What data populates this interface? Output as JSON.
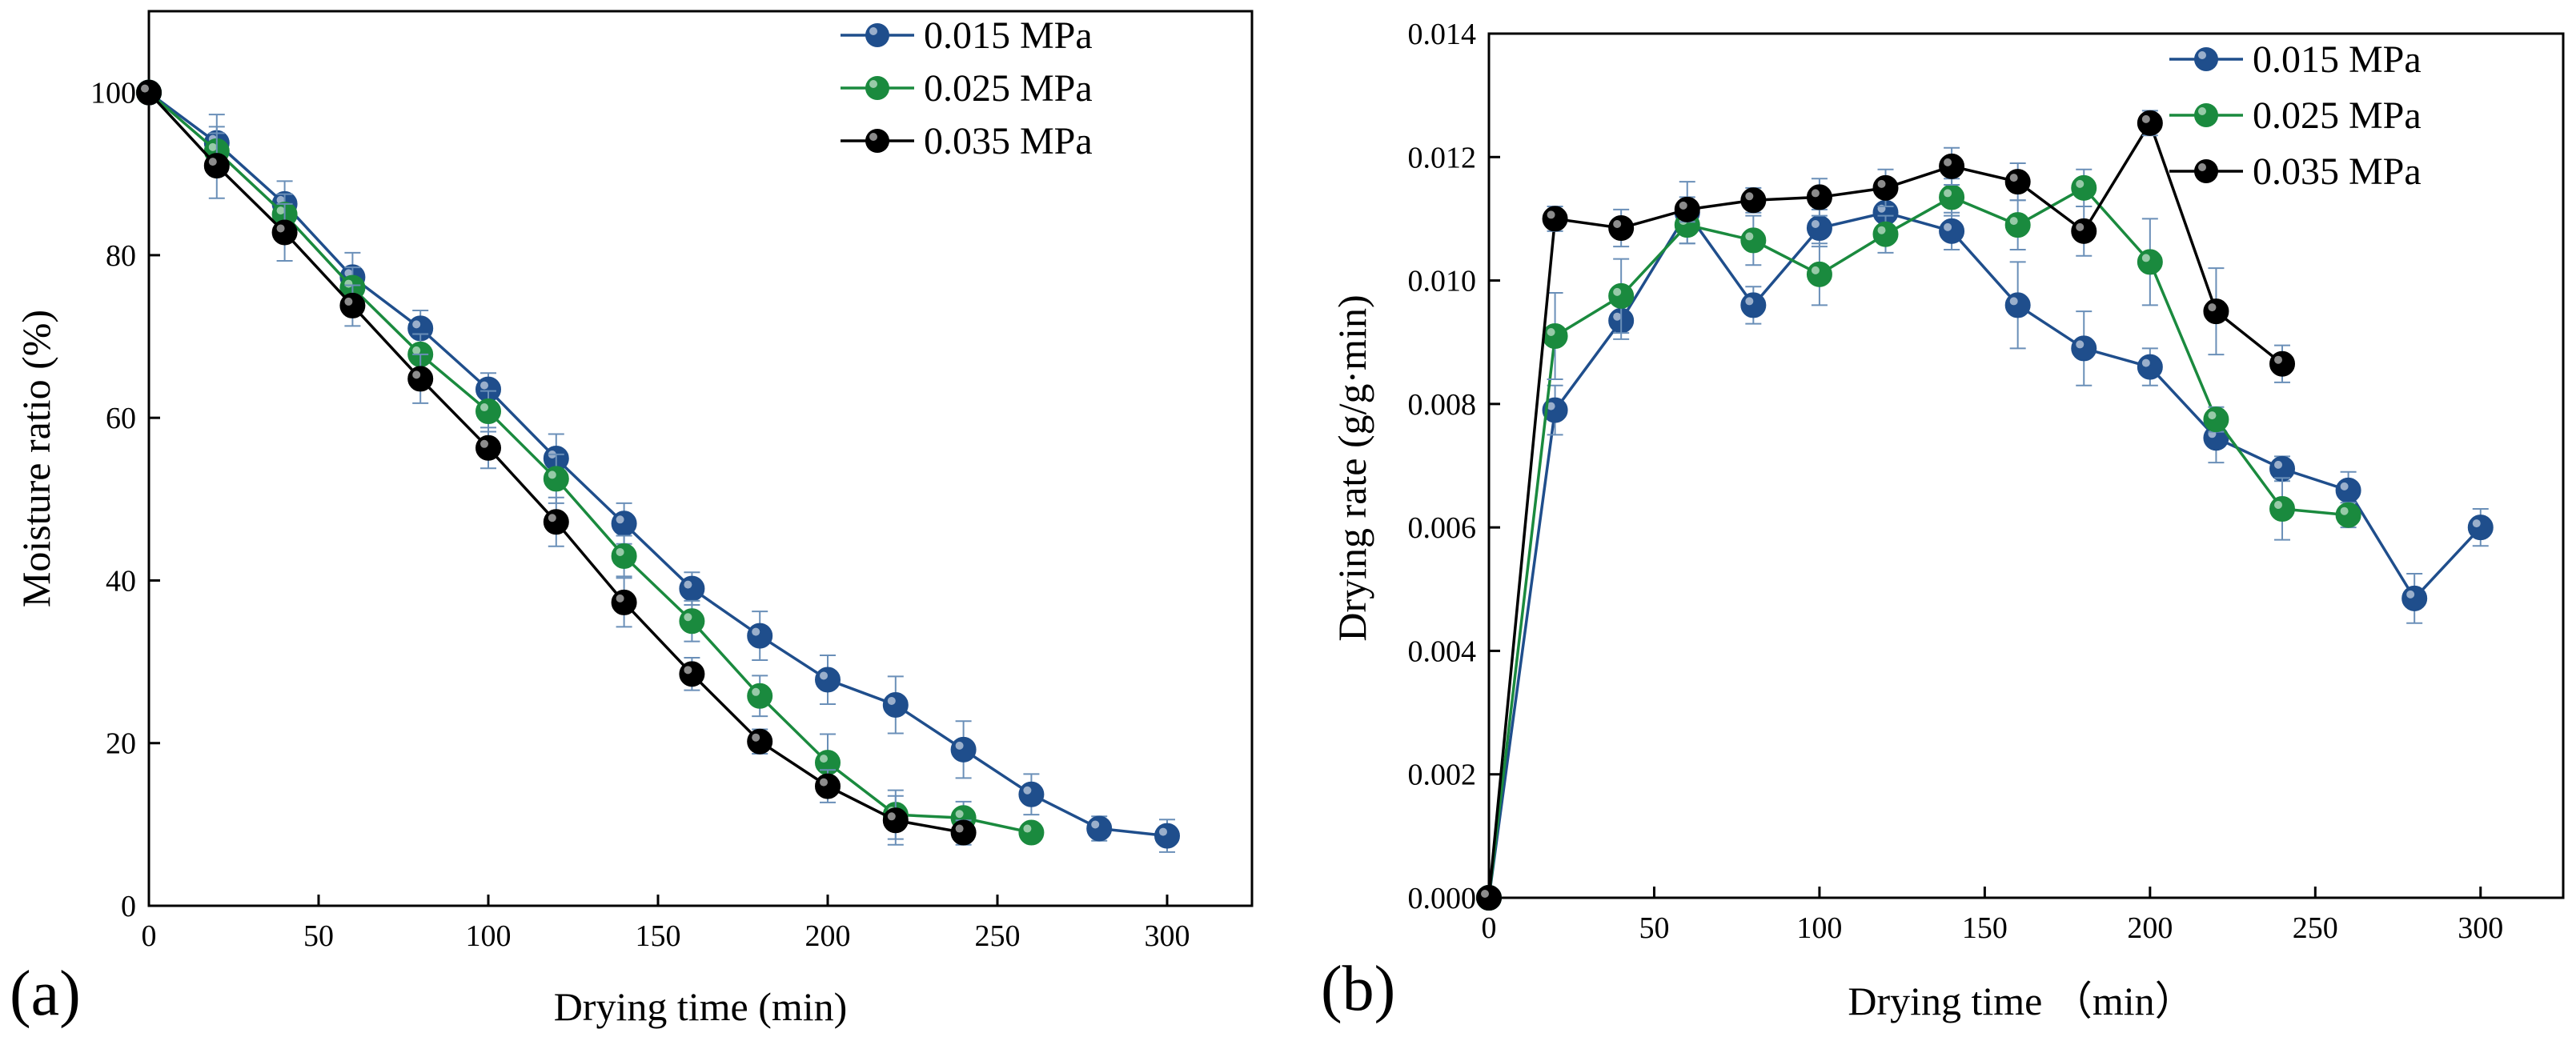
{
  "chart_data": [
    {
      "type": "line",
      "panel": "(a)",
      "xlabel": "Drying time (min)",
      "ylabel": "Moisture ratio (%)",
      "xlim": [
        0,
        325
      ],
      "ylim": [
        0,
        110
      ],
      "xticks": [
        0,
        50,
        100,
        150,
        200,
        250,
        300
      ],
      "yticks": [
        0,
        20,
        40,
        60,
        80,
        100
      ],
      "legend_position": "top-right",
      "series": [
        {
          "name": "0.015 MPa",
          "color": "#1f4e8c",
          "x": [
            0,
            20,
            40,
            60,
            80,
            100,
            120,
            140,
            160,
            180,
            200,
            220,
            240,
            260,
            280,
            300
          ],
          "y": [
            100,
            93.8,
            86.3,
            77.3,
            71.0,
            63.5,
            55.0,
            47.0,
            39.0,
            33.2,
            27.8,
            24.7,
            19.2,
            13.7,
            9.5,
            8.6
          ],
          "err": [
            0,
            3.5,
            2.8,
            3.0,
            2.2,
            2.0,
            3.0,
            2.5,
            2.0,
            3.0,
            3.0,
            3.5,
            3.5,
            2.5,
            1.5,
            2.0
          ]
        },
        {
          "name": "0.025 MPa",
          "color": "#1a8a3e",
          "x": [
            0,
            20,
            40,
            60,
            80,
            100,
            120,
            140,
            160,
            180,
            200,
            220,
            240,
            260
          ],
          "y": [
            100,
            92.8,
            85.0,
            76.0,
            67.8,
            60.8,
            52.5,
            43.0,
            35.0,
            25.8,
            17.6,
            11.2,
            10.8,
            9.0
          ],
          "err": [
            0,
            3.0,
            2.5,
            2.5,
            2.5,
            2.5,
            3.0,
            2.5,
            2.5,
            2.5,
            3.5,
            3.0,
            2.0,
            1.0
          ]
        },
        {
          "name": "0.035 MPa",
          "color": "#000000",
          "x": [
            0,
            20,
            40,
            60,
            80,
            100,
            120,
            140,
            160,
            180,
            200,
            220,
            240
          ],
          "y": [
            100,
            91.0,
            82.8,
            73.8,
            64.8,
            56.3,
            47.2,
            37.3,
            28.5,
            20.2,
            14.7,
            10.5,
            9.0
          ],
          "err": [
            0,
            4.0,
            3.5,
            2.5,
            3.0,
            2.5,
            3.0,
            3.0,
            2.0,
            1.5,
            2.0,
            3.0,
            1.5
          ]
        }
      ]
    },
    {
      "type": "line",
      "panel": "(b)",
      "xlabel": "Drying time （min）",
      "ylabel": "Drying rate (g/g·min)",
      "xlim": [
        0,
        325
      ],
      "ylim": [
        0,
        0.014
      ],
      "xticks": [
        0,
        50,
        100,
        150,
        200,
        250,
        300
      ],
      "yticks": [
        0.0,
        0.002,
        0.004,
        0.006,
        0.008,
        0.01,
        0.012,
        0.014
      ],
      "legend_position": "top-right",
      "series": [
        {
          "name": "0.015 MPa",
          "color": "#1f4e8c",
          "x": [
            0,
            20,
            40,
            60,
            80,
            100,
            120,
            140,
            160,
            180,
            200,
            220,
            240,
            260,
            280,
            300
          ],
          "y": [
            0,
            0.0079,
            0.00935,
            0.0111,
            0.0096,
            0.01085,
            0.0111,
            0.0108,
            0.0096,
            0.0089,
            0.0086,
            0.00745,
            0.00695,
            0.0066,
            0.00485,
            0.006
          ],
          "err": [
            0,
            0.0004,
            0.0003,
            0.0005,
            0.0003,
            0.0003,
            0.0003,
            0.0003,
            0.0007,
            0.0006,
            0.0003,
            0.0004,
            0.0002,
            0.0003,
            0.0004,
            0.0003
          ]
        },
        {
          "name": "0.025 MPa",
          "color": "#1a8a3e",
          "x": [
            0,
            20,
            40,
            60,
            80,
            100,
            120,
            140,
            160,
            180,
            200,
            220,
            240,
            260
          ],
          "y": [
            0,
            0.0091,
            0.00975,
            0.0109,
            0.01065,
            0.0101,
            0.01075,
            0.01135,
            0.0109,
            0.0115,
            0.0103,
            0.00775,
            0.0063,
            0.0062
          ],
          "err": [
            0,
            0.0007,
            0.0006,
            0.0003,
            0.0004,
            0.0005,
            0.0003,
            0.0003,
            0.0004,
            0.0003,
            0.0007,
            0.0002,
            0.0005,
            0.0002
          ]
        },
        {
          "name": "0.035 MPa",
          "color": "#000000",
          "x": [
            0,
            20,
            40,
            60,
            80,
            100,
            120,
            140,
            160,
            180,
            200,
            220,
            240
          ],
          "y": [
            0,
            0.011,
            0.01085,
            0.01115,
            0.0113,
            0.01135,
            0.0115,
            0.01185,
            0.0116,
            0.0108,
            0.01255,
            0.0095,
            0.00865
          ],
          "err": [
            0,
            0.0002,
            0.0003,
            0.0002,
            0.0002,
            0.0003,
            0.0003,
            0.0003,
            0.0003,
            0.0004,
            0.0002,
            0.0007,
            0.0003
          ]
        }
      ]
    }
  ]
}
